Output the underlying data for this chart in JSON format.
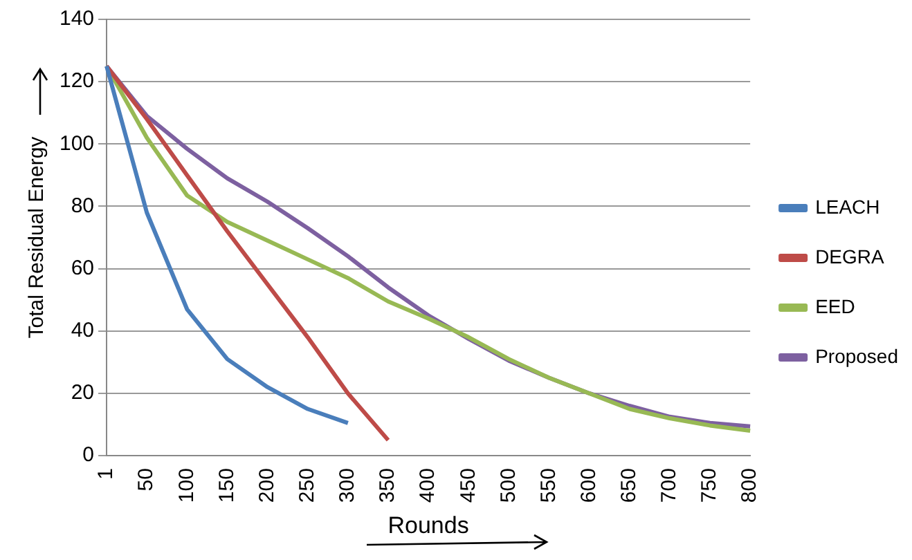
{
  "chart_data": {
    "type": "line",
    "xlabel": "Rounds",
    "ylabel": "Total Residual Energy",
    "categories": [
      "1",
      "50",
      "100",
      "150",
      "200",
      "250",
      "300",
      "350",
      "400",
      "450",
      "500",
      "550",
      "600",
      "650",
      "700",
      "750",
      "800"
    ],
    "series": [
      {
        "name": "LEACH",
        "color": "#4a7ebb",
        "values": [
          125,
          78,
          47,
          31,
          22,
          15,
          10.5,
          null,
          null,
          null,
          null,
          null,
          null,
          null,
          null,
          null,
          null
        ]
      },
      {
        "name": "DEGRA",
        "color": "#be4b48",
        "values": [
          125,
          108,
          90,
          72,
          55,
          38,
          20,
          5,
          null,
          null,
          null,
          null,
          null,
          null,
          null,
          null,
          null
        ]
      },
      {
        "name": "EED",
        "color": "#98b954",
        "values": [
          125,
          102,
          83.5,
          75,
          69,
          63,
          57,
          49.5,
          44,
          38,
          31,
          25,
          20,
          15,
          12,
          9.7,
          8
        ]
      },
      {
        "name": "Proposed",
        "color": "#7d60a0",
        "values": [
          125,
          109,
          98.5,
          89,
          81.5,
          73,
          64,
          54,
          45,
          37.5,
          30.5,
          25,
          20,
          16,
          12.5,
          10.5,
          9.4
        ]
      }
    ],
    "ylim": [
      0,
      140
    ],
    "yticks": [
      0,
      20,
      40,
      60,
      80,
      100,
      120,
      140
    ],
    "grid": "y",
    "legend": "right",
    "marker": "none",
    "line_style": "solid"
  }
}
